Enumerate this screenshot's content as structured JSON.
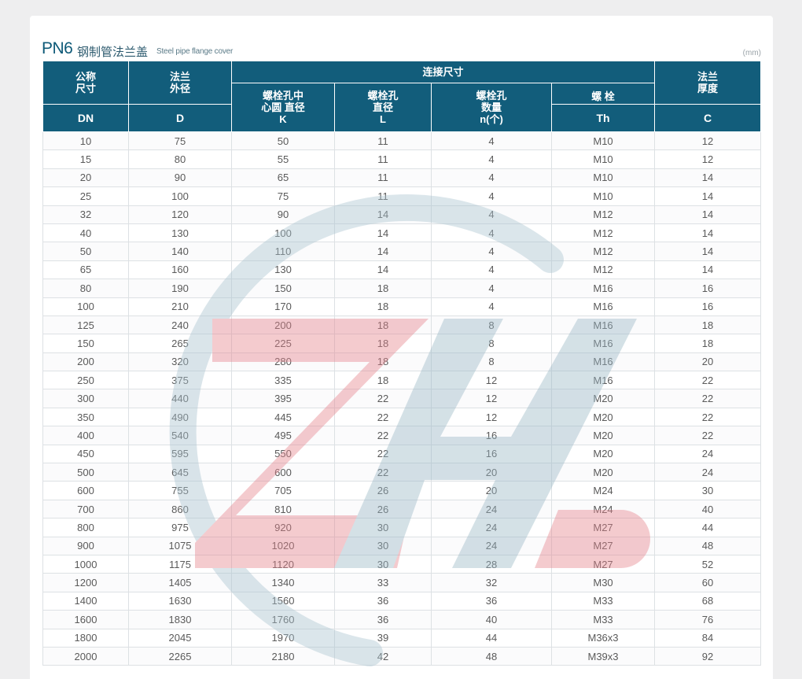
{
  "title": {
    "series": "PN6",
    "name_cn": "钢制管法兰盖",
    "name_en": "Steel pipe flange cover",
    "unit": "(mm)"
  },
  "header": {
    "nominal_size": "公称\n尺寸",
    "outer_diameter": "法兰\n外径",
    "connection": "连接尺寸",
    "flange_thickness": "法兰\n厚度",
    "bolt_circle": "螺栓孔中\n心圆 直径\nK",
    "bolt_hole_dia": "螺栓孔\n直径\nL",
    "bolt_hole_qty": "螺栓孔\n数量\nn(个)",
    "bolt": "螺  栓",
    "sym_dn": "DN",
    "sym_d": "D",
    "sym_th": "Th",
    "sym_c": "C"
  },
  "columns": [
    "DN",
    "D",
    "K",
    "L",
    "n",
    "Th",
    "C"
  ],
  "rows": [
    [
      "10",
      "75",
      "50",
      "11",
      "4",
      "M10",
      "12"
    ],
    [
      "15",
      "80",
      "55",
      "11",
      "4",
      "M10",
      "12"
    ],
    [
      "20",
      "90",
      "65",
      "11",
      "4",
      "M10",
      "14"
    ],
    [
      "25",
      "100",
      "75",
      "11",
      "4",
      "M10",
      "14"
    ],
    [
      "32",
      "120",
      "90",
      "14",
      "4",
      "M12",
      "14"
    ],
    [
      "40",
      "130",
      "100",
      "14",
      "4",
      "M12",
      "14"
    ],
    [
      "50",
      "140",
      "110",
      "14",
      "4",
      "M12",
      "14"
    ],
    [
      "65",
      "160",
      "130",
      "14",
      "4",
      "M12",
      "14"
    ],
    [
      "80",
      "190",
      "150",
      "18",
      "4",
      "M16",
      "16"
    ],
    [
      "100",
      "210",
      "170",
      "18",
      "4",
      "M16",
      "16"
    ],
    [
      "125",
      "240",
      "200",
      "18",
      "8",
      "M16",
      "18"
    ],
    [
      "150",
      "265",
      "225",
      "18",
      "8",
      "M16",
      "18"
    ],
    [
      "200",
      "320",
      "280",
      "18",
      "8",
      "M16",
      "20"
    ],
    [
      "250",
      "375",
      "335",
      "18",
      "12",
      "M16",
      "22"
    ],
    [
      "300",
      "440",
      "395",
      "22",
      "12",
      "M20",
      "22"
    ],
    [
      "350",
      "490",
      "445",
      "22",
      "12",
      "M20",
      "22"
    ],
    [
      "400",
      "540",
      "495",
      "22",
      "16",
      "M20",
      "22"
    ],
    [
      "450",
      "595",
      "550",
      "22",
      "16",
      "M20",
      "24"
    ],
    [
      "500",
      "645",
      "600",
      "22",
      "20",
      "M20",
      "24"
    ],
    [
      "600",
      "755",
      "705",
      "26",
      "20",
      "M24",
      "30"
    ],
    [
      "700",
      "860",
      "810",
      "26",
      "24",
      "M24",
      "40"
    ],
    [
      "800",
      "975",
      "920",
      "30",
      "24",
      "M27",
      "44"
    ],
    [
      "900",
      "1075",
      "1020",
      "30",
      "24",
      "M27",
      "48"
    ],
    [
      "1000",
      "1175",
      "1120",
      "30",
      "28",
      "M27",
      "52"
    ],
    [
      "1200",
      "1405",
      "1340",
      "33",
      "32",
      "M30",
      "60"
    ],
    [
      "1400",
      "1630",
      "1560",
      "36",
      "36",
      "M33",
      "68"
    ],
    [
      "1600",
      "1830",
      "1760",
      "36",
      "40",
      "M33",
      "76"
    ],
    [
      "1800",
      "2045",
      "1970",
      "39",
      "44",
      "M36x3",
      "84"
    ],
    [
      "2000",
      "2265",
      "2180",
      "42",
      "48",
      "M39x3",
      "92"
    ]
  ],
  "watermark": {
    "icon": "zh-logo-watermark",
    "colors": [
      "#e8a0a6",
      "#a9c3cf"
    ]
  },
  "colors": {
    "header_bg": "#125d7b",
    "title": "#0e5a78",
    "cell_text": "#5a5a5a"
  }
}
